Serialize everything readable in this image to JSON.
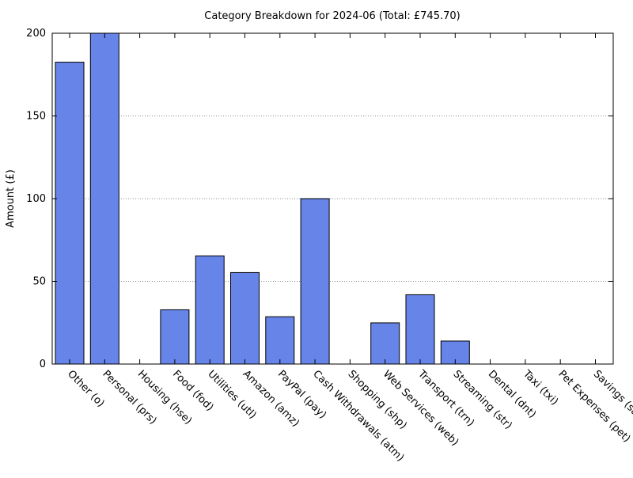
{
  "chart_data": {
    "type": "bar",
    "title": "Category Breakdown for 2024-06 (Total: £745.70)",
    "xlabel": "",
    "ylabel": "Amount (£)",
    "ylim": [
      0,
      200
    ],
    "yticks": [
      0,
      50,
      100,
      150,
      200
    ],
    "categories": [
      "Other (o)",
      "Personal (prs)",
      "Housing (hse)",
      "Food (fod)",
      "Utilities (utl)",
      "Amazon (amz)",
      "PayPal (pay)",
      "Cash Withdrawals (atm)",
      "Shopping (shp)",
      "Web Services (web)",
      "Transport (trn)",
      "Streaming (str)",
      "Dental (dnt)",
      "Taxi (txi)",
      "Pet Expenses (pet)",
      "Savings (sav)"
    ],
    "values": [
      182.5,
      200.0,
      0,
      32.8,
      65.4,
      55.3,
      28.6,
      100.0,
      0,
      24.9,
      41.9,
      13.9,
      0,
      0,
      0,
      0
    ],
    "grid": "horizontal-dotted",
    "legend": "none",
    "bar_color": "#6785e8",
    "bar_edge_color": "#000000"
  }
}
